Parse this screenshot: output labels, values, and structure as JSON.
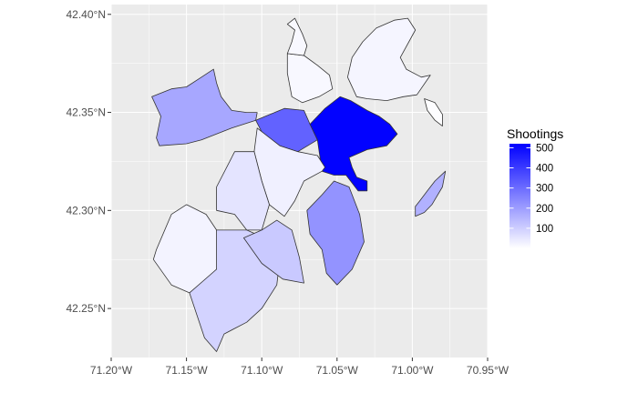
{
  "map": {
    "x_axis": {
      "range": [
        -71.2,
        -70.95
      ],
      "ticks": [
        -71.2,
        -71.15,
        -71.1,
        -71.05,
        -71.0,
        -70.95
      ],
      "tick_labels": [
        "71.20°W",
        "71.15°W",
        "71.10°W",
        "71.05°W",
        "71.00°W",
        "70.95°W"
      ]
    },
    "y_axis": {
      "range": [
        42.225,
        42.405
      ],
      "ticks": [
        42.25,
        42.3,
        42.35,
        42.4
      ],
      "tick_labels": [
        "42.25°N",
        "42.30°N",
        "42.35°N",
        "42.40°N"
      ]
    },
    "colors": {
      "panel": "#ebebeb",
      "grid": "#ffffff",
      "border": "#333333",
      "scale_low": "#ffffff",
      "scale_high": "#0000ff"
    },
    "legend": {
      "title": "Shootings",
      "min": 0,
      "max": 520,
      "breaks": [
        100,
        200,
        300,
        400,
        500
      ],
      "break_labels": [
        "100",
        "200",
        "300",
        "400",
        "500"
      ],
      "placement": "right"
    },
    "regions": [
      {
        "id": "east-boston",
        "value": 20,
        "coords": [
          [
            -71.043,
            42.368
          ],
          [
            -71.04,
            42.378
          ],
          [
            -71.033,
            42.386
          ],
          [
            -71.024,
            42.393
          ],
          [
            -71.012,
            42.397
          ],
          [
            -71.003,
            42.398
          ],
          [
            -70.998,
            42.392
          ],
          [
            -71.008,
            42.378
          ],
          [
            -71.004,
            42.372
          ],
          [
            -70.994,
            42.368
          ],
          [
            -70.988,
            42.369
          ],
          [
            -70.997,
            42.359
          ],
          [
            -71.006,
            42.358
          ],
          [
            -71.017,
            42.356
          ],
          [
            -71.03,
            42.357
          ],
          [
            -71.037,
            42.358
          ]
        ]
      },
      {
        "id": "charlestown",
        "value": 15,
        "coords": [
          [
            -71.083,
            42.38
          ],
          [
            -71.072,
            42.379
          ],
          [
            -71.063,
            42.374
          ],
          [
            -71.055,
            42.369
          ],
          [
            -71.053,
            42.362
          ],
          [
            -71.062,
            42.358
          ],
          [
            -71.073,
            42.355
          ],
          [
            -71.08,
            42.358
          ],
          [
            -71.083,
            42.37
          ]
        ]
      },
      {
        "id": "charlestown-north",
        "value": 15,
        "coords": [
          [
            -71.083,
            42.38
          ],
          [
            -71.08,
            42.386
          ],
          [
            -71.078,
            42.392
          ],
          [
            -71.083,
            42.395
          ],
          [
            -71.078,
            42.398
          ],
          [
            -71.073,
            42.39
          ],
          [
            -71.07,
            42.384
          ],
          [
            -71.072,
            42.379
          ]
        ]
      },
      {
        "id": "allston-brighton",
        "value": 180,
        "coords": [
          [
            -71.173,
            42.358
          ],
          [
            -71.16,
            42.362
          ],
          [
            -71.15,
            42.363
          ],
          [
            -71.142,
            42.367
          ],
          [
            -71.132,
            42.372
          ],
          [
            -71.13,
            42.365
          ],
          [
            -71.127,
            42.358
          ],
          [
            -71.12,
            42.351
          ],
          [
            -71.11,
            42.35
          ],
          [
            -71.103,
            42.35
          ],
          [
            -71.104,
            42.346
          ],
          [
            -71.112,
            42.344
          ],
          [
            -71.12,
            42.342
          ],
          [
            -71.13,
            42.339
          ],
          [
            -71.14,
            42.336
          ],
          [
            -71.15,
            42.334
          ],
          [
            -71.168,
            42.333
          ],
          [
            -71.17,
            42.337
          ],
          [
            -71.167,
            42.348
          ]
        ]
      },
      {
        "id": "fenway",
        "value": 320,
        "coords": [
          [
            -71.104,
            42.346
          ],
          [
            -71.085,
            42.352
          ],
          [
            -71.072,
            42.351
          ],
          [
            -71.068,
            42.344
          ],
          [
            -71.063,
            42.336
          ],
          [
            -71.076,
            42.33
          ],
          [
            -71.088,
            42.333
          ],
          [
            -71.1,
            42.34
          ]
        ]
      },
      {
        "id": "downtown-south-end",
        "value": 515,
        "coords": [
          [
            -71.068,
            42.344
          ],
          [
            -71.058,
            42.352
          ],
          [
            -71.048,
            42.358
          ],
          [
            -71.041,
            42.356
          ],
          [
            -71.03,
            42.351
          ],
          [
            -71.022,
            42.348
          ],
          [
            -71.015,
            42.344
          ],
          [
            -71.01,
            42.339
          ],
          [
            -71.017,
            42.333
          ],
          [
            -71.03,
            42.331
          ],
          [
            -71.042,
            42.327
          ],
          [
            -71.04,
            42.322
          ],
          [
            -71.037,
            42.317
          ],
          [
            -71.03,
            42.315
          ],
          [
            -71.03,
            42.31
          ],
          [
            -71.036,
            42.31
          ],
          [
            -71.044,
            42.318
          ],
          [
            -71.052,
            42.318
          ],
          [
            -71.06,
            42.32
          ],
          [
            -71.063,
            42.336
          ]
        ]
      },
      {
        "id": "roxbury",
        "value": 30,
        "coords": [
          [
            -71.103,
            42.342
          ],
          [
            -71.088,
            42.333
          ],
          [
            -71.076,
            42.33
          ],
          [
            -71.063,
            42.328
          ],
          [
            -71.058,
            42.322
          ],
          [
            -71.06,
            42.32
          ],
          [
            -71.072,
            42.315
          ],
          [
            -71.078,
            42.305
          ],
          [
            -71.085,
            42.297
          ],
          [
            -71.095,
            42.303
          ],
          [
            -71.1,
            42.315
          ],
          [
            -71.105,
            42.33
          ]
        ]
      },
      {
        "id": "jamaica-plain",
        "value": 55,
        "coords": [
          [
            -71.105,
            42.33
          ],
          [
            -71.1,
            42.315
          ],
          [
            -71.095,
            42.303
          ],
          [
            -71.1,
            42.29
          ],
          [
            -71.11,
            42.29
          ],
          [
            -71.118,
            42.298
          ],
          [
            -71.13,
            42.3
          ],
          [
            -71.13,
            42.312
          ],
          [
            -71.118,
            42.33
          ]
        ]
      },
      {
        "id": "west-roxbury",
        "value": 25,
        "coords": [
          [
            -71.17,
            42.28
          ],
          [
            -71.16,
            42.298
          ],
          [
            -71.15,
            42.303
          ],
          [
            -71.137,
            42.298
          ],
          [
            -71.13,
            42.29
          ],
          [
            -71.125,
            42.275
          ],
          [
            -71.13,
            42.27
          ],
          [
            -71.14,
            42.263
          ],
          [
            -71.148,
            42.258
          ],
          [
            -71.16,
            42.262
          ],
          [
            -71.172,
            42.275
          ]
        ]
      },
      {
        "id": "roslindale",
        "value": 90,
        "coords": [
          [
            -71.13,
            42.29
          ],
          [
            -71.11,
            42.29
          ],
          [
            -71.095,
            42.285
          ],
          [
            -71.088,
            42.275
          ],
          [
            -71.09,
            42.262
          ],
          [
            -71.1,
            42.25
          ],
          [
            -71.11,
            42.243
          ],
          [
            -71.125,
            42.237
          ],
          [
            -71.13,
            42.228
          ],
          [
            -71.138,
            42.235
          ],
          [
            -71.148,
            42.258
          ],
          [
            -71.13,
            42.27
          ]
        ]
      },
      {
        "id": "mattapan",
        "value": 110,
        "coords": [
          [
            -71.112,
            42.286
          ],
          [
            -71.1,
            42.29
          ],
          [
            -71.09,
            42.295
          ],
          [
            -71.08,
            42.29
          ],
          [
            -71.075,
            42.276
          ],
          [
            -71.072,
            42.263
          ],
          [
            -71.086,
            42.265
          ],
          [
            -71.1,
            42.273
          ]
        ]
      },
      {
        "id": "dorchester",
        "value": 220,
        "coords": [
          [
            -71.07,
            42.3
          ],
          [
            -71.06,
            42.308
          ],
          [
            -71.052,
            42.315
          ],
          [
            -71.042,
            42.312
          ],
          [
            -71.035,
            42.298
          ],
          [
            -71.032,
            42.284
          ],
          [
            -71.04,
            42.27
          ],
          [
            -71.05,
            42.262
          ],
          [
            -71.057,
            42.268
          ],
          [
            -71.06,
            42.28
          ],
          [
            -71.068,
            42.288
          ]
        ]
      },
      {
        "id": "airport-strip",
        "value": 160,
        "coords": [
          [
            -70.978,
            42.32
          ],
          [
            -70.985,
            42.315
          ],
          [
            -70.99,
            42.31
          ],
          [
            -70.995,
            42.305
          ],
          [
            -70.998,
            42.302
          ],
          [
            -70.998,
            42.297
          ],
          [
            -70.992,
            42.299
          ],
          [
            -70.987,
            42.303
          ],
          [
            -70.98,
            42.312
          ]
        ]
      },
      {
        "id": "deer-island",
        "value": 5,
        "coords": [
          [
            -70.992,
            42.357
          ],
          [
            -70.985,
            42.355
          ],
          [
            -70.98,
            42.349
          ],
          [
            -70.98,
            42.343
          ],
          [
            -70.985,
            42.346
          ],
          [
            -70.99,
            42.351
          ]
        ]
      }
    ]
  }
}
